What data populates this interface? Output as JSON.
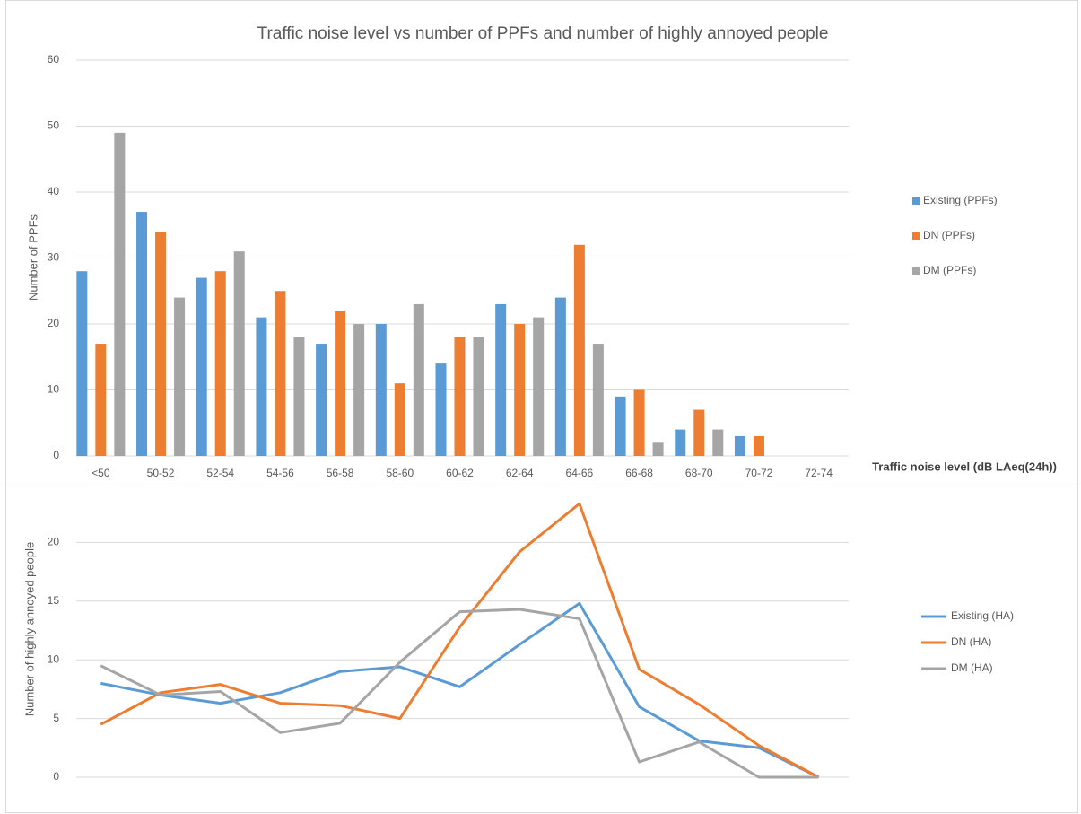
{
  "chart_data": [
    {
      "type": "bar",
      "title": "Traffic noise level vs number of PPFs and number of highly annoyed people",
      "y_label": "Number of PPFs",
      "x_label": "Traffic noise level (dB LAeq(24h))",
      "categories": [
        "<50",
        "50-52",
        "52-54",
        "54-56",
        "56-58",
        "58-60",
        "60-62",
        "62-64",
        "64-66",
        "66-68",
        "68-70",
        "70-72",
        "72-74"
      ],
      "series": [
        {
          "name": "Existing (PPFs)",
          "color": "#5b9bd5",
          "values": [
            28,
            37,
            27,
            21,
            17,
            20,
            14,
            23,
            24,
            9,
            4,
            3,
            0
          ]
        },
        {
          "name": "DN (PPFs)",
          "color": "#ed7d31",
          "values": [
            17,
            34,
            28,
            25,
            22,
            11,
            18,
            20,
            32,
            10,
            7,
            3,
            0
          ]
        },
        {
          "name": "DM (PPFs)",
          "color": "#a5a5a5",
          "values": [
            49,
            24,
            31,
            18,
            20,
            23,
            18,
            21,
            17,
            2,
            4,
            0,
            0
          ]
        }
      ],
      "ylim": [
        0,
        60
      ],
      "yticks": [
        0,
        10,
        20,
        30,
        40,
        50,
        60
      ],
      "grid": true,
      "legend": "right"
    },
    {
      "type": "line",
      "y_label": "Number of highly annoyed people",
      "categories": [
        null,
        null,
        null,
        null,
        null,
        null,
        null,
        null,
        null,
        null,
        null,
        null,
        null
      ],
      "series": [
        {
          "name": "Existing (HA)",
          "color": "#5b9bd5",
          "values": [
            8,
            7.0,
            6.3,
            7.2,
            9.0,
            9.4,
            7.7,
            11.3,
            14.8,
            6.0,
            3.1,
            2.5,
            0
          ]
        },
        {
          "name": "DN (HA)",
          "color": "#ed7d31",
          "values": [
            4.5,
            7.2,
            7.9,
            6.3,
            6.1,
            5.0,
            12.8,
            19.2,
            23.3,
            9.2,
            6.2,
            2.7,
            0
          ]
        },
        {
          "name": "DM (HA)",
          "color": "#a5a5a5",
          "values": [
            9.5,
            7.0,
            7.3,
            3.8,
            4.6,
            9.8,
            14.1,
            14.3,
            13.5,
            1.3,
            3.0,
            0,
            0
          ]
        }
      ],
      "ylim": [
        0,
        25
      ],
      "yticks": [
        0,
        5,
        10,
        15,
        20
      ],
      "grid": true,
      "legend": "right"
    }
  ]
}
